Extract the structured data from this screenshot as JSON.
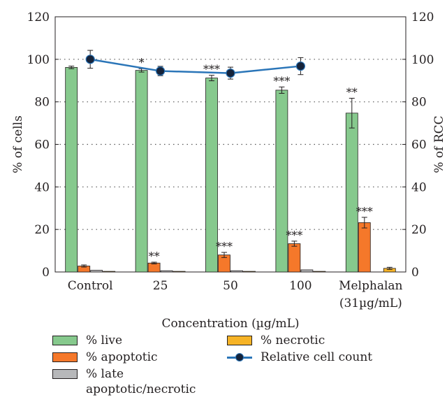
{
  "chart_data": {
    "type": "bar",
    "categories": [
      "Control",
      "25",
      "50",
      "100",
      "Melphalan"
    ],
    "category_sublabels": [
      "",
      "",
      "",
      "",
      "(31µg/mL)"
    ],
    "xlabel": "Concentration (µg/mL)",
    "ylabel": "% of cells",
    "y2label": "% of RCC",
    "ylim": [
      0,
      120
    ],
    "y2lim": [
      0,
      120
    ],
    "yticks": [
      0,
      20,
      40,
      60,
      80,
      100,
      120
    ],
    "grid": "dotted horizontal",
    "series": [
      {
        "name": "% live",
        "color": "#86c98d",
        "values": [
          96.2,
          94.8,
          91.2,
          85.5,
          74.7
        ],
        "errors": [
          0.6,
          0.8,
          1.3,
          1.5,
          7.0
        ],
        "significance": [
          "",
          "*",
          "***",
          "***",
          "**"
        ]
      },
      {
        "name": "% apoptotic",
        "color": "#f5782a",
        "values": [
          2.8,
          4.2,
          8.0,
          13.3,
          23.2
        ],
        "errors": [
          0.5,
          0.4,
          1.2,
          1.2,
          2.5
        ],
        "significance": [
          "",
          "**",
          "***",
          "***",
          "***"
        ]
      },
      {
        "name": "% late apoptotic/necrotic",
        "color": "#b7b8ba",
        "values": [
          0.8,
          0.6,
          0.6,
          1.0,
          0.0
        ],
        "errors": [
          0,
          0,
          0,
          0,
          0
        ],
        "significance": [
          "",
          "",
          "",
          "",
          ""
        ]
      },
      {
        "name": "% necrotic",
        "color": "#f6b326",
        "values": [
          0.3,
          0.3,
          0.3,
          0.3,
          1.7
        ],
        "errors": [
          0,
          0,
          0,
          0,
          0.5
        ],
        "significance": [
          "",
          "",
          "",
          "",
          ""
        ]
      }
    ],
    "line_series": {
      "name": "Relative cell count",
      "axis": "right",
      "color": "#2a75b8",
      "marker_color": "#16233a",
      "values": [
        100,
        94.5,
        93.5,
        96.8,
        null
      ],
      "errors": [
        4.2,
        2.2,
        2.8,
        4.0,
        null
      ]
    },
    "legend_position": "bottom"
  },
  "legend": {
    "live": "% live",
    "apoptotic": "% apoptotic",
    "late": "% late apoptotic/necrotic",
    "necrotic": "% necrotic",
    "rcc": "Relative cell count"
  }
}
